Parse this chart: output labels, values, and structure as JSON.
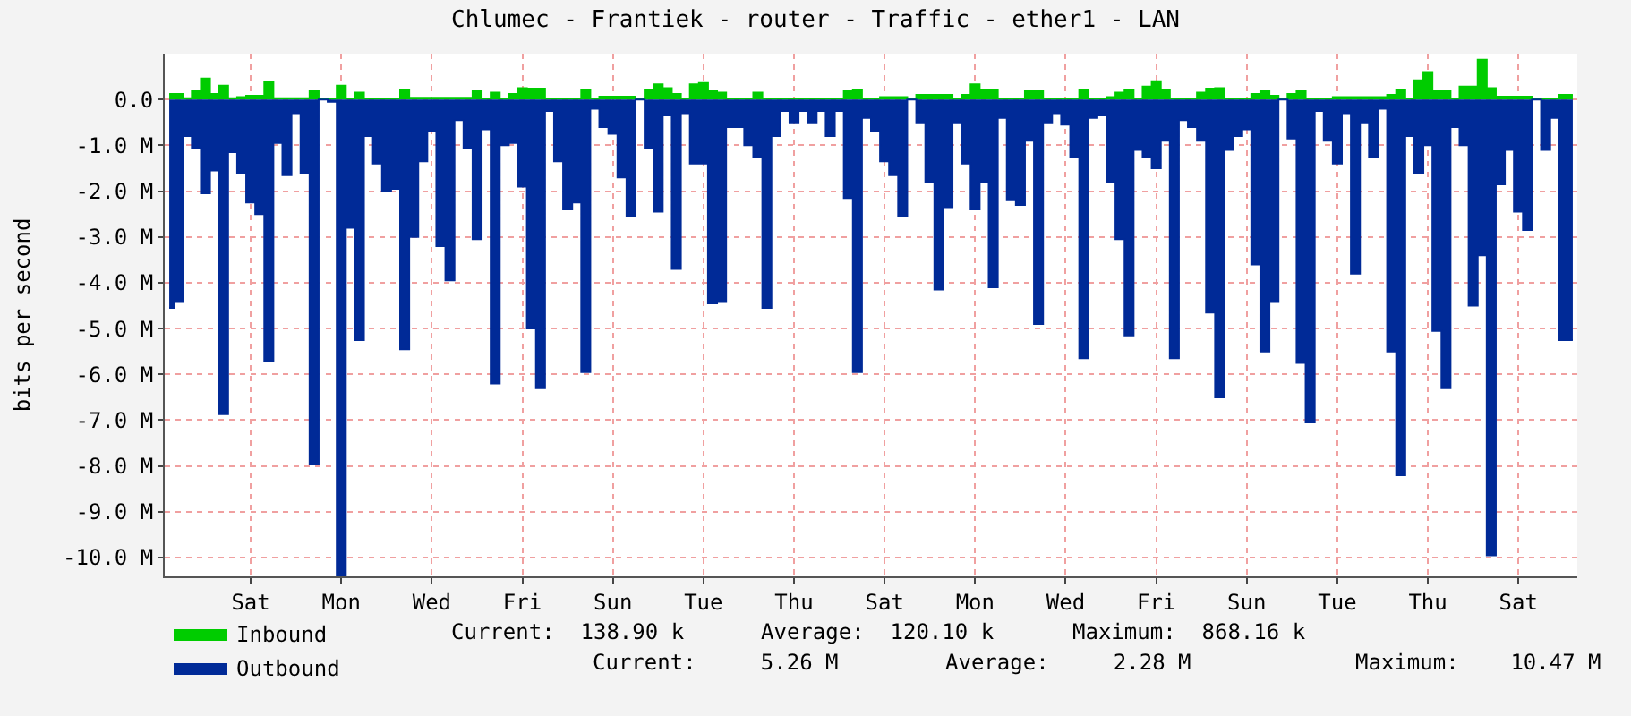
{
  "chart_data": {
    "type": "area",
    "title": "Chlumec - Frantiek - router - Traffic - ether1 - LAN",
    "ylabel": "bits per second",
    "categories": [
      null,
      null,
      null,
      null,
      null,
      null,
      null,
      null,
      null,
      "Sat",
      null,
      null,
      null,
      null,
      null,
      null,
      null,
      null,
      null,
      "Mon",
      null,
      null,
      null,
      null,
      null,
      null,
      null,
      null,
      null,
      "Wed",
      null,
      null,
      null,
      null,
      null,
      null,
      null,
      null,
      null,
      "Fri",
      null,
      null,
      null,
      null,
      null,
      null,
      null,
      null,
      null,
      "Sun",
      null,
      null,
      null,
      null,
      null,
      null,
      null,
      null,
      null,
      "Tue",
      null,
      null,
      null,
      null,
      null,
      null,
      null,
      null,
      null,
      "Thu",
      null,
      null,
      null,
      null,
      null,
      null,
      null,
      null,
      null,
      "Sat",
      null,
      null,
      null,
      null,
      null,
      null,
      null,
      null,
      null,
      "Mon",
      null,
      null,
      null,
      null,
      null,
      null,
      null,
      null,
      null,
      "Wed",
      null,
      null,
      null,
      null,
      null,
      null,
      null,
      null,
      null,
      "Fri",
      null,
      null,
      null,
      null,
      null,
      null,
      null,
      null,
      null,
      "Sun",
      null,
      null,
      null,
      null,
      null,
      null,
      null,
      null,
      null,
      "Tue",
      null,
      null,
      null,
      null,
      null,
      null,
      null,
      null,
      null,
      "Thu",
      null,
      null,
      null,
      null,
      null,
      null,
      null,
      null,
      null,
      "Sat",
      null,
      null,
      null,
      null,
      null,
      null
    ],
    "ylim": [
      -10.41,
      1.0
    ],
    "yticks": [
      {
        "value": 0,
        "label": "0.0"
      },
      {
        "value": -1,
        "label": "-1.0 M"
      },
      {
        "value": -2,
        "label": "-2.0 M"
      },
      {
        "value": -3,
        "label": "-3.0 M"
      },
      {
        "value": -4,
        "label": "-4.0 M"
      },
      {
        "value": -5,
        "label": "-5.0 M"
      },
      {
        "value": -6,
        "label": "-6.0 M"
      },
      {
        "value": -7,
        "label": "-7.0 M"
      },
      {
        "value": -8,
        "label": "-8.0 M"
      },
      {
        "value": -9,
        "label": "-9.0 M"
      },
      {
        "value": -10,
        "label": "-10.0 M"
      }
    ],
    "grid": true,
    "legend": "bottom left",
    "annotations": [
      "Current:  138.90 k",
      "Average:  120.10 k",
      "Maximum:  868.16 k",
      "Current:     5.26 M",
      "Average:     2.28 M",
      "Maximum:    10.47 M"
    ],
    "series": [
      {
        "name": "Inbound",
        "color": "#00cc00",
        "values": [
          0.12,
          0.12,
          0.03,
          0.18,
          0.46,
          0.12,
          0.3,
          0.03,
          0.05,
          0.08,
          0.08,
          0.38,
          0.03,
          0.03,
          0.03,
          0.03,
          0.18,
          0.02,
          0.02,
          0.3,
          0.02,
          0.15,
          0.02,
          0.02,
          0.02,
          0.02,
          0.22,
          0.04,
          0.04,
          0.04,
          0.04,
          0.04,
          0.04,
          0.04,
          0.18,
          0.02,
          0.15,
          0.02,
          0.12,
          0.25,
          0.24,
          0.24,
          0.02,
          0.02,
          0.02,
          0.02,
          0.22,
          0.02,
          0.06,
          0.06,
          0.06,
          0.06,
          0.02,
          0.22,
          0.33,
          0.25,
          0.12,
          0.02,
          0.33,
          0.36,
          0.18,
          0.15,
          0.02,
          0.02,
          0.02,
          0.15,
          0.02,
          0.02,
          0.02,
          0.02,
          0.02,
          0.02,
          0.02,
          0.02,
          0.02,
          0.18,
          0.22,
          0.02,
          0.02,
          0.05,
          0.05,
          0.05,
          0.02,
          0.1,
          0.1,
          0.1,
          0.1,
          0.02,
          0.1,
          0.33,
          0.22,
          0.22,
          0.02,
          0.02,
          0.02,
          0.18,
          0.18,
          0.02,
          0.02,
          0.02,
          0.02,
          0.22,
          0.02,
          0.02,
          0.05,
          0.15,
          0.22,
          0.02,
          0.28,
          0.4,
          0.22,
          0.02,
          0.02,
          0.02,
          0.15,
          0.24,
          0.25,
          0.02,
          0.02,
          0.02,
          0.12,
          0.18,
          0.08,
          0.02,
          0.12,
          0.18,
          0.02,
          0.02,
          0.02,
          0.05,
          0.05,
          0.05,
          0.05,
          0.05,
          0.05,
          0.1,
          0.22,
          0.02,
          0.42,
          0.6,
          0.18,
          0.18,
          0.02,
          0.28,
          0.28,
          0.87,
          0.25,
          0.06,
          0.06,
          0.06,
          0.06,
          0.02,
          0.02,
          0.02,
          0.1,
          0.1
        ]
      },
      {
        "name": "Outbound",
        "color": "#002a97",
        "values": [
          -4.55,
          -4.4,
          -0.8,
          -1.05,
          -2.05,
          -1.55,
          -6.87,
          -1.15,
          -1.6,
          -2.25,
          -2.5,
          -5.7,
          -0.95,
          -1.65,
          -0.3,
          -1.6,
          -7.95,
          0,
          -0.05,
          -10.4,
          -2.8,
          -5.25,
          -0.8,
          -1.4,
          -2.0,
          -1.95,
          -5.45,
          -3.0,
          -1.35,
          -0.7,
          -3.2,
          -3.95,
          -0.45,
          -1.05,
          -3.05,
          -0.65,
          -6.2,
          -1.0,
          -0.95,
          -1.9,
          -5.0,
          -6.3,
          -0.25,
          -1.35,
          -2.4,
          -2.25,
          -5.95,
          -0.2,
          -0.6,
          -0.75,
          -1.7,
          -2.55,
          0,
          -1.05,
          -2.45,
          -0.35,
          -3.7,
          -0.3,
          -1.4,
          -1.4,
          -4.45,
          -4.4,
          -0.6,
          -0.6,
          -1.0,
          -1.25,
          -4.55,
          -0.8,
          -0.25,
          -0.5,
          -0.25,
          -0.5,
          -0.25,
          -0.8,
          -0.25,
          -2.15,
          -5.95,
          -0.4,
          -0.7,
          -1.35,
          -1.65,
          -2.55,
          0,
          -0.5,
          -1.8,
          -4.15,
          -2.35,
          -0.5,
          -1.4,
          -2.4,
          -1.8,
          -4.1,
          -0.4,
          -2.2,
          -2.3,
          -0.9,
          -4.9,
          -0.5,
          -0.3,
          -0.55,
          -1.25,
          -5.65,
          -0.4,
          -0.35,
          -1.8,
          -3.05,
          -5.15,
          -1.1,
          -1.25,
          -1.5,
          -0.9,
          -5.65,
          -0.45,
          -0.6,
          -0.9,
          -4.65,
          -6.5,
          -1.1,
          -0.8,
          -0.65,
          -3.6,
          -5.5,
          -4.4,
          0,
          -0.85,
          -5.75,
          -7.05,
          -0.25,
          -0.9,
          -1.4,
          -0.3,
          -3.8,
          -0.5,
          -1.25,
          -0.2,
          -5.5,
          -8.2,
          -0.8,
          -1.6,
          -1.0,
          -5.05,
          -6.3,
          -0.6,
          -1.0,
          -4.5,
          -3.4,
          -9.95,
          -1.85,
          -1.1,
          -2.45,
          -2.85,
          0,
          -1.1,
          -0.4,
          -5.25,
          -5.25
        ]
      }
    ]
  }
}
